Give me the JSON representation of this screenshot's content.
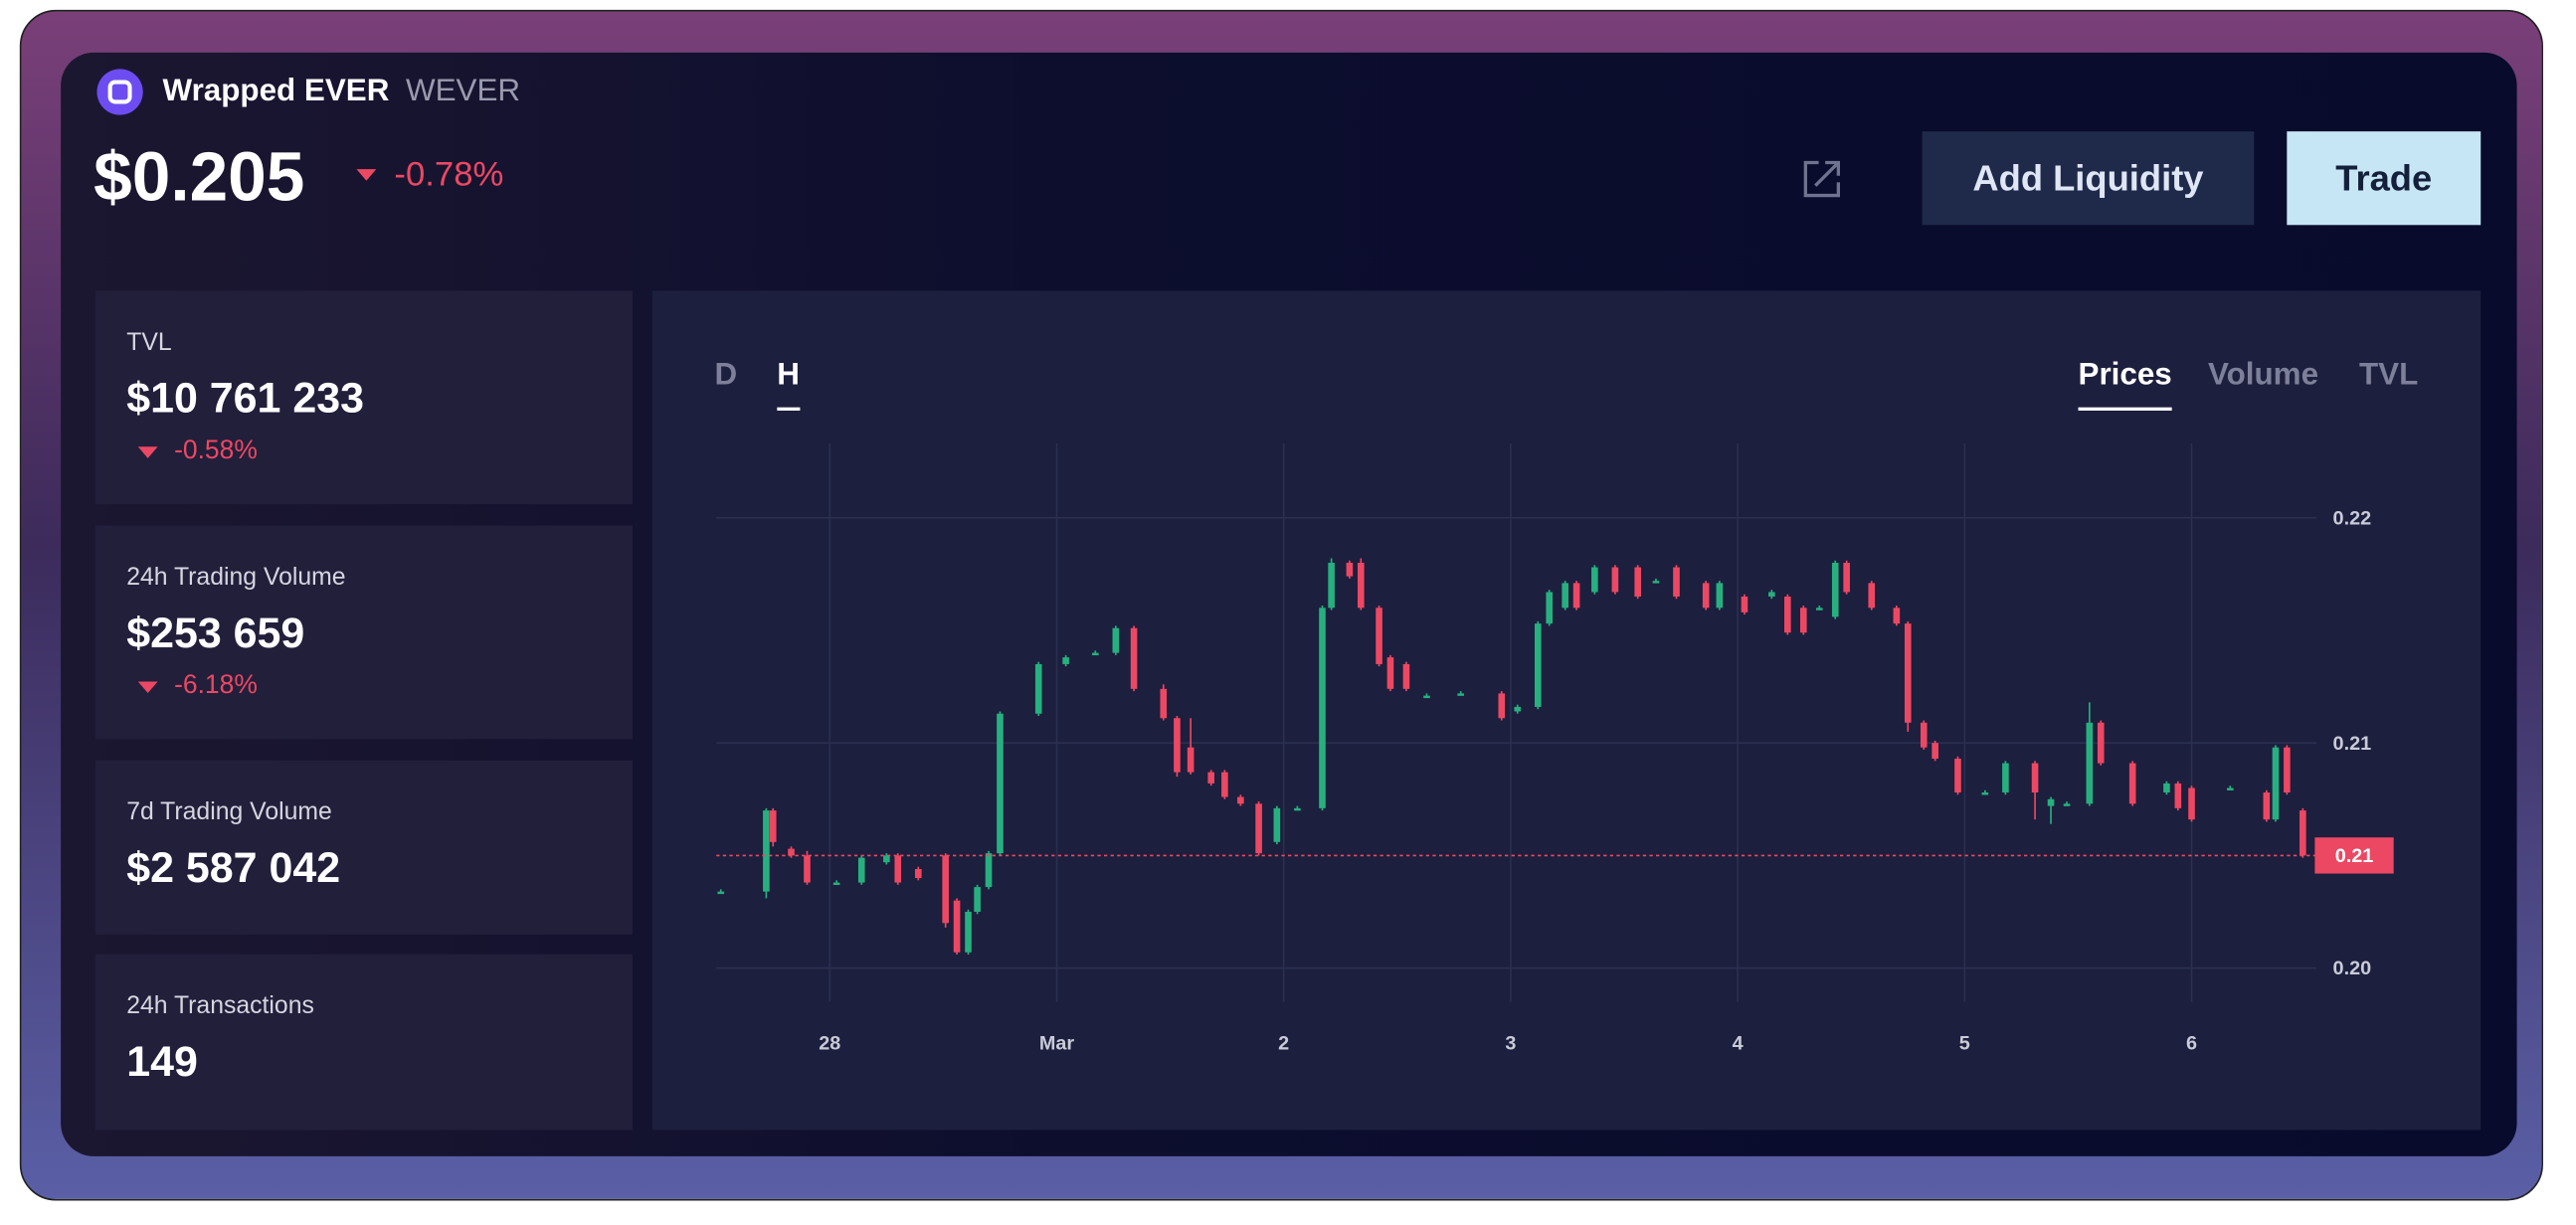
{
  "header": {
    "name": "Wrapped EVER",
    "symbol": "WEVER",
    "price": "$0.205",
    "change": "-0.78%"
  },
  "actions": {
    "add_liquidity": "Add Liquidity",
    "trade": "Trade"
  },
  "stats": [
    {
      "label": "TVL",
      "value": "$10 761 233",
      "change": "-0.58%"
    },
    {
      "label": "24h Trading Volume",
      "value": "$253 659",
      "change": "-6.18%"
    },
    {
      "label": "7d Trading Volume",
      "value": "$2 587 042"
    },
    {
      "label": "24h Transactions",
      "value": "149"
    }
  ],
  "timeframes": [
    "D",
    "H"
  ],
  "metrics": [
    "Prices",
    "Volume",
    "TVL"
  ],
  "chart": {
    "type": "candlestick",
    "up_color": "#27b07f",
    "down_color": "#ec4863",
    "grid": true,
    "x": [
      -0.48,
      -0.28,
      -0.25,
      -0.17,
      -0.1,
      0.03,
      0.14,
      0.25,
      0.3,
      0.39,
      0.51,
      0.56,
      0.61,
      0.65,
      0.7,
      0.75,
      0.92,
      1.04,
      1.17,
      1.26,
      1.34,
      1.47,
      1.53,
      1.59,
      1.68,
      1.74,
      1.81,
      1.89,
      1.97,
      2.06,
      2.17,
      2.21,
      2.29,
      2.34,
      2.42,
      2.47,
      2.54,
      2.63,
      2.78,
      2.96,
      3.03,
      3.12,
      3.17,
      3.24,
      3.29,
      3.37,
      3.46,
      3.56,
      3.64,
      3.73,
      3.86,
      3.92,
      4.03,
      4.15,
      4.22,
      4.29,
      4.36,
      4.43,
      4.48,
      4.59,
      4.7,
      4.75,
      4.82,
      4.87,
      4.97,
      5.09,
      5.18,
      5.31,
      5.38,
      5.45,
      5.55,
      5.6,
      5.74,
      5.89,
      5.94,
      6.0,
      6.17,
      6.33,
      6.37,
      6.42,
      6.49
    ],
    "open": [
      0.2034,
      0.2034,
      0.207,
      0.2053,
      0.205,
      0.2038,
      0.2038,
      0.2047,
      0.205,
      0.2044,
      0.205,
      0.203,
      0.2007,
      0.2025,
      0.2036,
      0.2051,
      0.2113,
      0.2135,
      0.214,
      0.214,
      0.2151,
      0.2124,
      0.2111,
      0.2098,
      0.2087,
      0.2087,
      0.2076,
      0.2073,
      0.2056,
      0.2071,
      0.2071,
      0.216,
      0.218,
      0.218,
      0.216,
      0.2138,
      0.2135,
      0.2121,
      0.2122,
      0.2122,
      0.2114,
      0.2116,
      0.2153,
      0.216,
      0.2171,
      0.2167,
      0.2178,
      0.2178,
      0.2172,
      0.2178,
      0.2171,
      0.216,
      0.2165,
      0.2165,
      0.2165,
      0.216,
      0.216,
      0.2156,
      0.218,
      0.2171,
      0.216,
      0.2153,
      0.2109,
      0.21,
      0.2093,
      0.2078,
      0.2078,
      0.2091,
      0.2072,
      0.2073,
      0.2073,
      0.2109,
      0.2091,
      0.2078,
      0.2082,
      0.208,
      0.208,
      0.2078,
      0.2066,
      0.2098,
      0.207
    ],
    "close": [
      0.2034,
      0.207,
      0.2056,
      0.205,
      0.2038,
      0.2038,
      0.2049,
      0.205,
      0.2038,
      0.204,
      0.202,
      0.2007,
      0.2025,
      0.2036,
      0.2051,
      0.2113,
      0.2135,
      0.2138,
      0.214,
      0.2151,
      0.2124,
      0.2111,
      0.2087,
      0.2087,
      0.2082,
      0.2076,
      0.2073,
      0.2051,
      0.2071,
      0.2071,
      0.216,
      0.218,
      0.2174,
      0.216,
      0.2135,
      0.2124,
      0.2124,
      0.2121,
      0.2122,
      0.2111,
      0.2116,
      0.2153,
      0.2167,
      0.2171,
      0.216,
      0.2178,
      0.2167,
      0.2165,
      0.2172,
      0.2165,
      0.216,
      0.2171,
      0.2158,
      0.2167,
      0.2149,
      0.2149,
      0.216,
      0.218,
      0.2167,
      0.216,
      0.2153,
      0.2109,
      0.2098,
      0.2093,
      0.2078,
      0.2078,
      0.2091,
      0.2078,
      0.2075,
      0.2073,
      0.2109,
      0.2091,
      0.2073,
      0.2082,
      0.2071,
      0.2066,
      0.208,
      0.2066,
      0.2098,
      0.2078,
      0.205
    ],
    "high": [
      0.2035,
      0.2071,
      0.2071,
      0.2054,
      0.2052,
      0.2039,
      0.205,
      0.2051,
      0.2051,
      0.2045,
      0.2051,
      0.2031,
      0.2026,
      0.2037,
      0.2052,
      0.2114,
      0.2136,
      0.2139,
      0.2141,
      0.2152,
      0.2152,
      0.2126,
      0.2112,
      0.2111,
      0.2088,
      0.2088,
      0.2077,
      0.2074,
      0.2072,
      0.2072,
      0.2161,
      0.2182,
      0.2181,
      0.2182,
      0.2161,
      0.2139,
      0.2136,
      0.2122,
      0.2123,
      0.2123,
      0.2117,
      0.2154,
      0.2168,
      0.2172,
      0.2172,
      0.2179,
      0.2179,
      0.2179,
      0.2173,
      0.2179,
      0.2172,
      0.2172,
      0.2166,
      0.2168,
      0.2166,
      0.2161,
      0.2161,
      0.2181,
      0.2181,
      0.2172,
      0.2161,
      0.2154,
      0.211,
      0.2101,
      0.2094,
      0.2079,
      0.2092,
      0.2092,
      0.2076,
      0.2074,
      0.2118,
      0.211,
      0.2092,
      0.2083,
      0.2083,
      0.2081,
      0.2081,
      0.2079,
      0.2099,
      0.2099,
      0.2071
    ],
    "low": [
      0.2033,
      0.2031,
      0.2054,
      0.2049,
      0.2037,
      0.2037,
      0.2037,
      0.2046,
      0.2037,
      0.2039,
      0.2018,
      0.2006,
      0.2006,
      0.2024,
      0.2035,
      0.205,
      0.2112,
      0.2134,
      0.2139,
      0.2139,
      0.2123,
      0.211,
      0.2085,
      0.2086,
      0.2081,
      0.2075,
      0.2072,
      0.205,
      0.2055,
      0.207,
      0.207,
      0.2159,
      0.2173,
      0.2159,
      0.2134,
      0.2123,
      0.2123,
      0.212,
      0.2121,
      0.211,
      0.2113,
      0.2115,
      0.2152,
      0.2159,
      0.2159,
      0.2166,
      0.2166,
      0.2164,
      0.2171,
      0.2164,
      0.2159,
      0.2159,
      0.2157,
      0.2164,
      0.2148,
      0.2148,
      0.2159,
      0.2155,
      0.2166,
      0.2159,
      0.2152,
      0.2105,
      0.2097,
      0.2092,
      0.2077,
      0.2077,
      0.2077,
      0.2066,
      0.2064,
      0.2072,
      0.2072,
      0.209,
      0.2072,
      0.2077,
      0.207,
      0.2065,
      0.2079,
      0.2065,
      0.2065,
      0.2077,
      0.2049
    ],
    "xlim": [
      -0.5,
      6.55
    ],
    "xticks": [
      {
        "value": 0,
        "label": "28"
      },
      {
        "value": 1,
        "label": "Mar"
      },
      {
        "value": 2,
        "label": "2"
      },
      {
        "value": 3,
        "label": "3"
      },
      {
        "value": 4,
        "label": "4"
      },
      {
        "value": 5,
        "label": "5"
      },
      {
        "value": 6,
        "label": "6"
      }
    ],
    "ylim": [
      0.1985,
      0.2233
    ],
    "yticks": [
      {
        "value": 0.2,
        "label": "0.20"
      },
      0.21,
      0.22
    ],
    "last_price": {
      "value": 0.205,
      "label": "0.21"
    }
  }
}
